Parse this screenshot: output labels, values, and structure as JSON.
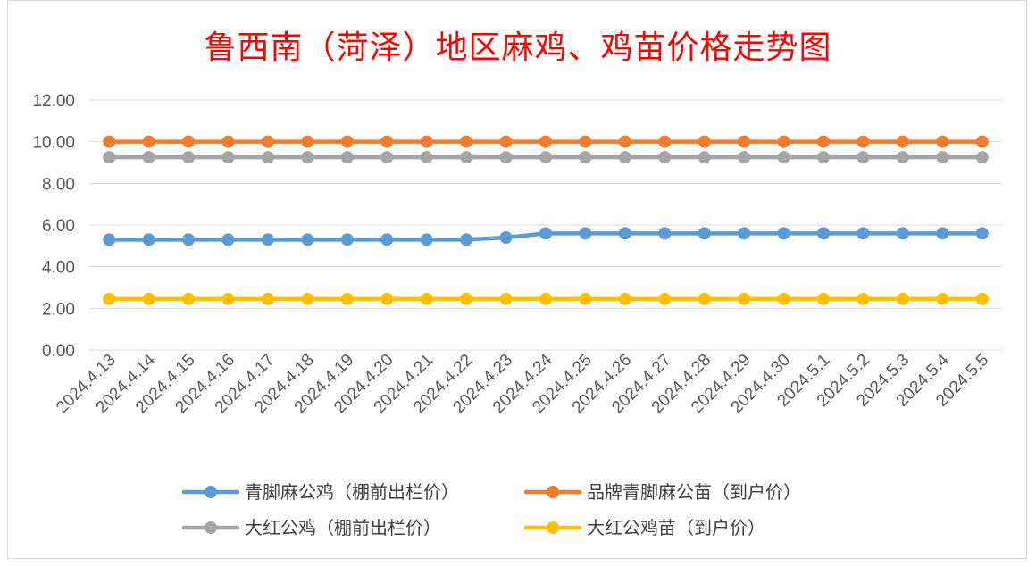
{
  "chart_data": {
    "type": "line",
    "title": "鲁西南（菏泽）地区麻鸡、鸡苗价格走势图",
    "xlabel": "",
    "ylabel": "",
    "ylim": [
      0,
      12
    ],
    "yticks": [
      "0.00",
      "2.00",
      "4.00",
      "6.00",
      "8.00",
      "10.00",
      "12.00"
    ],
    "grid": true,
    "legend_position": "bottom",
    "x": [
      "2024.4.13",
      "2024.4.14",
      "2024.4.15",
      "2024.4.16",
      "2024.4.17",
      "2024.4.18",
      "2024.4.19",
      "2024.4.20",
      "2024.4.21",
      "2024.4.22",
      "2024.4.23",
      "2024.4.24",
      "2024.4.25",
      "2024.4.26",
      "2024.4.27",
      "2024.4.28",
      "2024.4.29",
      "2024.4.30",
      "2024.5.1",
      "2024.5.2",
      "2024.5.3",
      "2024.5.4",
      "2024.5.5"
    ],
    "series": [
      {
        "name": "青脚麻公鸡（棚前出栏价）",
        "color": "#5b9bd5",
        "values": [
          5.3,
          5.3,
          5.3,
          5.3,
          5.3,
          5.3,
          5.3,
          5.3,
          5.3,
          5.3,
          5.4,
          5.6,
          5.6,
          5.6,
          5.6,
          5.6,
          5.6,
          5.6,
          5.6,
          5.6,
          5.6,
          5.6,
          5.6
        ]
      },
      {
        "name": "品牌青脚麻公苗（到户价）",
        "color": "#ed7d31",
        "values": [
          10,
          10,
          10,
          10,
          10,
          10,
          10,
          10,
          10,
          10,
          10,
          10,
          10,
          10,
          10,
          10,
          10,
          10,
          10,
          10,
          10,
          10,
          10
        ]
      },
      {
        "name": "大红公鸡（棚前出栏价）",
        "color": "#a5a5a5",
        "values": [
          9.25,
          9.25,
          9.25,
          9.25,
          9.25,
          9.25,
          9.25,
          9.25,
          9.25,
          9.25,
          9.25,
          9.25,
          9.25,
          9.25,
          9.25,
          9.25,
          9.25,
          9.25,
          9.25,
          9.25,
          9.25,
          9.25,
          9.25
        ]
      },
      {
        "name": "大红公鸡苗（到户价）",
        "color": "#ffc000",
        "values": [
          2.45,
          2.45,
          2.45,
          2.45,
          2.45,
          2.45,
          2.45,
          2.45,
          2.45,
          2.45,
          2.45,
          2.45,
          2.45,
          2.45,
          2.45,
          2.45,
          2.45,
          2.45,
          2.45,
          2.45,
          2.45,
          2.45,
          2.45
        ]
      }
    ]
  }
}
